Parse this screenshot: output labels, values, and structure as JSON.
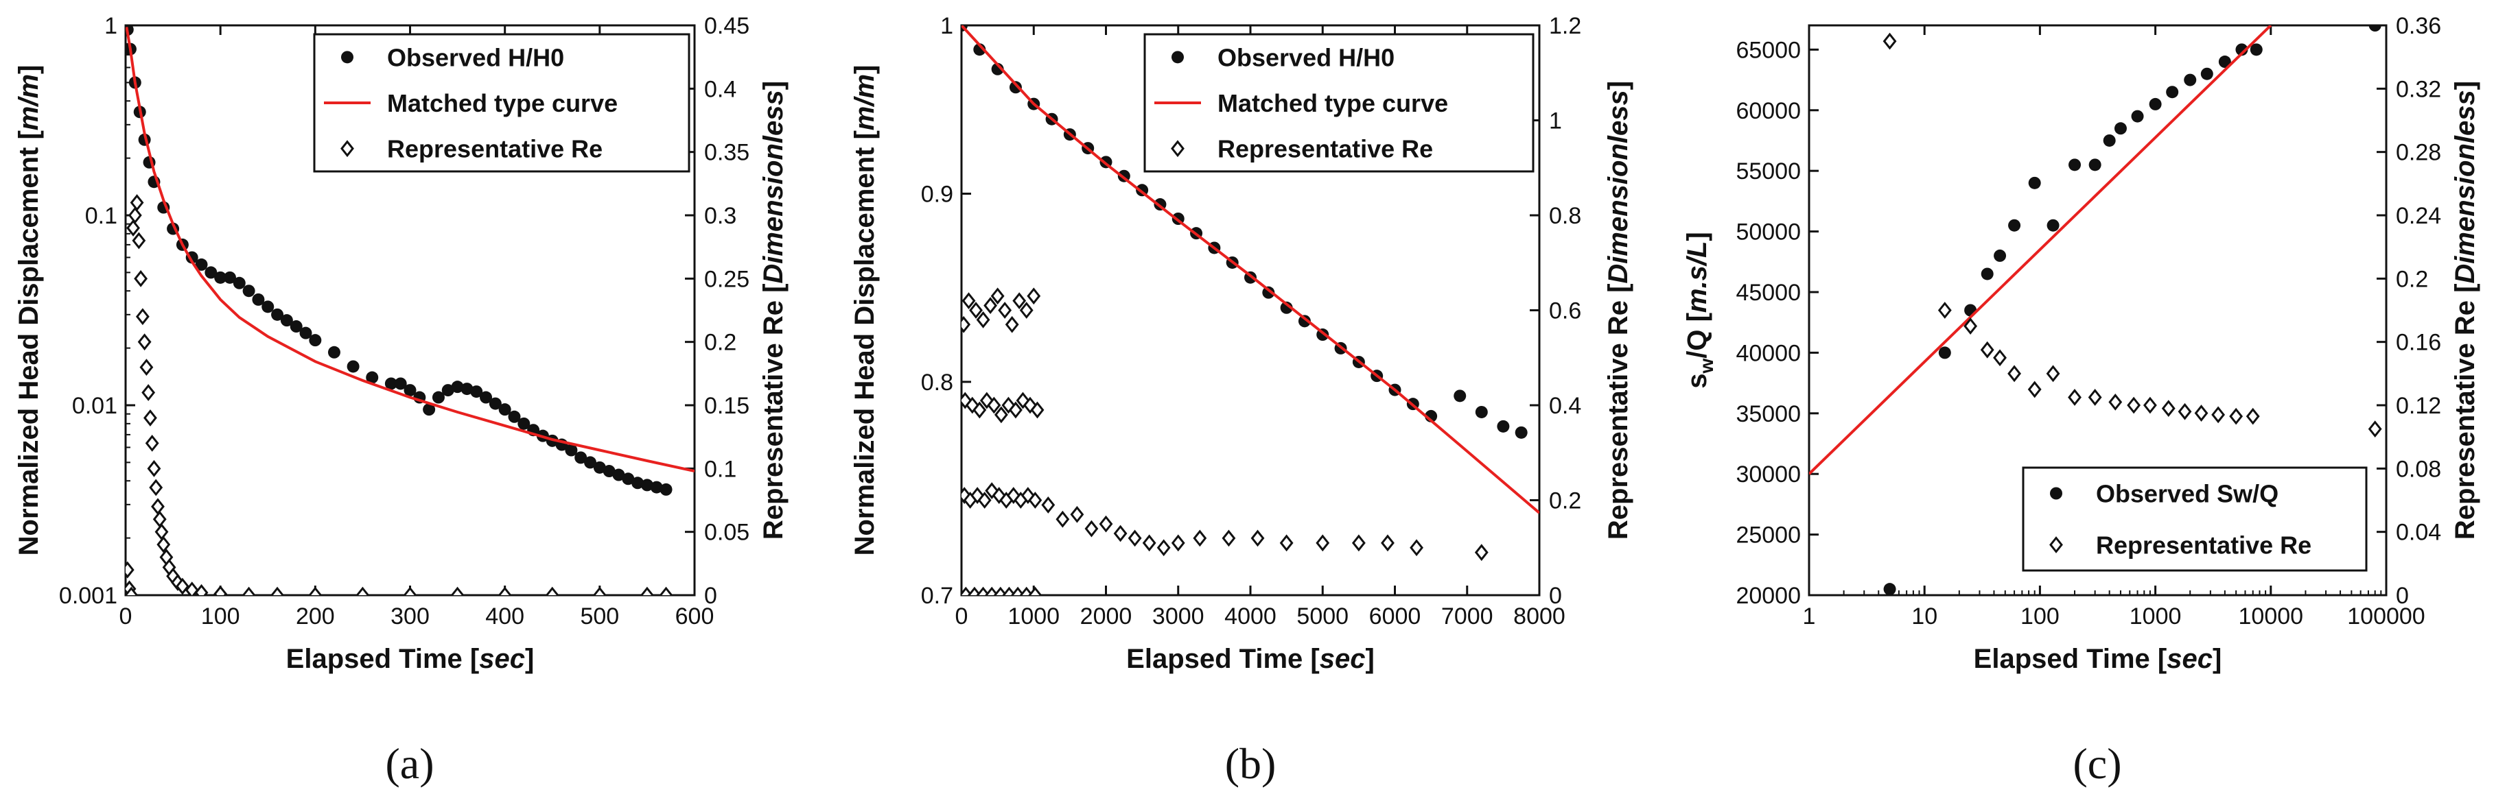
{
  "chart_data": [
    {
      "id": "a",
      "type": "scatter",
      "caption": "(a)",
      "xlabel": "Elapsed Time [",
      "xlabel_unit": "sec",
      "xlabel_end": "]",
      "ylabel": "Normalized Head Displacement [",
      "ylabel_unit": "m/m",
      "ylabel_end": "]",
      "y2label": "Representative Re [",
      "y2label_unit": "Dimensionless",
      "y2label_end": "]",
      "xlim": [
        0,
        600
      ],
      "xticks": [
        "0",
        "100",
        "200",
        "300",
        "400",
        "500",
        "600"
      ],
      "xtick_vals": [
        0,
        100,
        200,
        300,
        400,
        500,
        600
      ],
      "yscale": "log",
      "ylim": [
        0.001,
        1
      ],
      "yticks": [
        "1",
        "0.1",
        "0.01",
        "0.001"
      ],
      "ytick_vals": [
        1,
        0.1,
        0.01,
        0.001
      ],
      "y2lim": [
        0,
        0.45
      ],
      "y2ticks": [
        "0.45",
        "0.4",
        "0.35",
        "0.3",
        "0.25",
        "0.2",
        "0.15",
        "0.1",
        "0.05",
        "0"
      ],
      "y2tick_vals": [
        0.45,
        0.4,
        0.35,
        0.3,
        0.25,
        0.2,
        0.15,
        0.1,
        0.05,
        0
      ],
      "legend": [
        "Observed H/H0",
        "Matched type curve",
        "Representative Re"
      ],
      "legend_position": "top-right",
      "series": [
        {
          "name": "Observed H/H0",
          "axis": "left",
          "marker": "dot",
          "x": [
            2,
            5,
            10,
            15,
            20,
            25,
            30,
            40,
            50,
            60,
            70,
            80,
            90,
            100,
            110,
            120,
            130,
            140,
            150,
            160,
            170,
            180,
            190,
            200,
            220,
            240,
            260,
            280,
            290,
            300,
            310,
            320,
            330,
            340,
            350,
            360,
            370,
            380,
            390,
            400,
            410,
            420,
            430,
            440,
            450,
            460,
            470,
            480,
            490,
            500,
            510,
            520,
            530,
            540,
            550,
            560,
            570
          ],
          "y": [
            0.95,
            0.75,
            0.5,
            0.35,
            0.25,
            0.19,
            0.15,
            0.11,
            0.085,
            0.07,
            0.06,
            0.055,
            0.05,
            0.047,
            0.047,
            0.044,
            0.04,
            0.036,
            0.033,
            0.03,
            0.028,
            0.026,
            0.024,
            0.022,
            0.019,
            0.016,
            0.014,
            0.013,
            0.013,
            0.012,
            0.011,
            0.0095,
            0.011,
            0.012,
            0.0125,
            0.0122,
            0.0118,
            0.011,
            0.0102,
            0.0095,
            0.0087,
            0.008,
            0.0074,
            0.0069,
            0.0065,
            0.0062,
            0.0058,
            0.0053,
            0.005,
            0.0047,
            0.0045,
            0.0043,
            0.0041,
            0.0039,
            0.0038,
            0.0037,
            0.0036
          ]
        },
        {
          "name": "Matched type curve",
          "axis": "left",
          "marker": "line",
          "x": [
            1,
            5,
            10,
            20,
            30,
            40,
            50,
            60,
            70,
            80,
            100,
            120,
            150,
            200,
            250,
            300,
            350,
            400,
            450,
            500,
            550,
            600
          ],
          "y": [
            0.98,
            0.75,
            0.5,
            0.27,
            0.17,
            0.12,
            0.09,
            0.07,
            0.057,
            0.048,
            0.036,
            0.029,
            0.023,
            0.017,
            0.0135,
            0.011,
            0.0092,
            0.0078,
            0.0066,
            0.0058,
            0.0051,
            0.0045
          ]
        },
        {
          "name": "Representative Re",
          "axis": "right",
          "marker": "diamond",
          "x": [
            2,
            4,
            6,
            8,
            10,
            12,
            14,
            16,
            18,
            20,
            22,
            24,
            26,
            28,
            30,
            32,
            34,
            36,
            38,
            40,
            43,
            46,
            50,
            55,
            60,
            70,
            80,
            100,
            130,
            160,
            200,
            250,
            300,
            350,
            400,
            450,
            500,
            550,
            570
          ],
          "y": [
            0.02,
            0.005,
            0.0,
            0.29,
            0.3,
            0.31,
            0.28,
            0.25,
            0.22,
            0.2,
            0.18,
            0.16,
            0.14,
            0.12,
            0.1,
            0.085,
            0.07,
            0.06,
            0.05,
            0.04,
            0.03,
            0.022,
            0.015,
            0.01,
            0.007,
            0.004,
            0.002,
            0.001,
            0.0,
            0.0,
            0.0,
            0.0,
            0.0,
            0.0,
            0.0,
            0.0,
            0.0,
            0.0,
            0.0
          ]
        }
      ]
    },
    {
      "id": "b",
      "type": "scatter",
      "caption": "(b)",
      "xlabel": "Elapsed Time [",
      "xlabel_unit": "sec",
      "xlabel_end": "]",
      "ylabel": "Normalized Head Displacement [",
      "ylabel_unit": "m/m",
      "ylabel_end": "]",
      "y2label": "Representative Re [",
      "y2label_unit": "Dimensionless",
      "y2label_end": "]",
      "xlim": [
        0,
        8000
      ],
      "xticks": [
        "0",
        "1000",
        "2000",
        "3000",
        "4000",
        "5000",
        "6000",
        "7000",
        "8000"
      ],
      "xtick_vals": [
        0,
        1000,
        2000,
        3000,
        4000,
        5000,
        6000,
        7000,
        8000
      ],
      "yscale": "log",
      "ylim": [
        0.7,
        1
      ],
      "yticks": [
        "1",
        "0.9",
        "0.8",
        "0.7"
      ],
      "ytick_vals": [
        1,
        0.9,
        0.8,
        0.7
      ],
      "y2lim": [
        0,
        1.2
      ],
      "y2ticks": [
        "1.2",
        "1",
        "0.8",
        "0.6",
        "0.4",
        "0.2",
        "0"
      ],
      "y2tick_vals": [
        1.2,
        1,
        0.8,
        0.6,
        0.4,
        0.2,
        0
      ],
      "legend": [
        "Observed H/H0",
        "Matched type curve",
        "Representative Re"
      ],
      "legend_position": "top-right",
      "series": [
        {
          "name": "Observed H/H0",
          "axis": "left",
          "marker": "dot",
          "x": [
            0,
            250,
            500,
            750,
            1000,
            1250,
            1500,
            1750,
            2000,
            2250,
            2500,
            2750,
            3000,
            3250,
            3500,
            3750,
            4000,
            4250,
            4500,
            4750,
            5000,
            5250,
            5500,
            5750,
            6000,
            6250,
            6500,
            6900,
            7200,
            7500,
            7750
          ],
          "y": [
            1.0,
            0.985,
            0.973,
            0.962,
            0.952,
            0.943,
            0.934,
            0.926,
            0.918,
            0.91,
            0.902,
            0.894,
            0.886,
            0.878,
            0.87,
            0.862,
            0.854,
            0.846,
            0.838,
            0.831,
            0.824,
            0.817,
            0.81,
            0.803,
            0.796,
            0.789,
            0.783,
            0.793,
            0.785,
            0.778,
            0.775
          ]
        },
        {
          "name": "Matched type curve",
          "axis": "left",
          "marker": "line",
          "x": [
            0,
            1000,
            2000,
            3000,
            4000,
            5000,
            6000,
            7000,
            8000
          ],
          "y": [
            1.0,
            0.952,
            0.917,
            0.885,
            0.855,
            0.825,
            0.796,
            0.766,
            0.737
          ]
        },
        {
          "name": "Representative Re",
          "axis": "right",
          "marker": "diamond",
          "x": [
            30,
            100,
            200,
            300,
            400,
            500,
            600,
            700,
            800,
            900,
            1000,
            50,
            150,
            250,
            350,
            450,
            550,
            650,
            750,
            850,
            950,
            1050,
            40,
            120,
            220,
            320,
            420,
            520,
            620,
            720,
            820,
            920,
            1020,
            1200,
            1400,
            1600,
            1800,
            2000,
            2200,
            2400,
            2600,
            2800,
            3000,
            3300,
            3700,
            4100,
            4500,
            5000,
            5500,
            5900,
            6300,
            7200,
            60,
            180,
            300,
            420,
            540,
            660,
            780,
            900,
            1020
          ],
          "y": [
            0.57,
            0.62,
            0.6,
            0.58,
            0.61,
            0.63,
            0.6,
            0.57,
            0.62,
            0.6,
            0.63,
            0.41,
            0.4,
            0.39,
            0.41,
            0.4,
            0.38,
            0.4,
            0.39,
            0.41,
            0.4,
            0.39,
            0.21,
            0.2,
            0.21,
            0.2,
            0.22,
            0.21,
            0.2,
            0.21,
            0.2,
            0.21,
            0.2,
            0.19,
            0.16,
            0.17,
            0.14,
            0.15,
            0.13,
            0.12,
            0.11,
            0.1,
            0.11,
            0.12,
            0.12,
            0.12,
            0.11,
            0.11,
            0.11,
            0.11,
            0.1,
            0.09,
            0.0,
            0.0,
            0.0,
            0.0,
            0.0,
            0.0,
            0.0,
            0.0,
            0.0
          ]
        }
      ]
    },
    {
      "id": "c",
      "type": "scatter",
      "caption": "(c)",
      "xlabel": "Elapsed Time [",
      "xlabel_unit": "sec",
      "xlabel_end": "]",
      "ylabel": "s",
      "ylabel_sub": "w",
      "ylabel_rest": "/Q [",
      "ylabel_unit": "m.s/L",
      "ylabel_end": "]",
      "y2label": "Representative Re [",
      "y2label_unit": "Dimensionless",
      "y2label_end": "]",
      "xscale": "log",
      "xlim": [
        1,
        100000
      ],
      "xticks": [
        "1",
        "10",
        "100",
        "1000",
        "10000",
        "100000"
      ],
      "xtick_vals": [
        1,
        10,
        100,
        1000,
        10000,
        100000
      ],
      "ylim": [
        20000,
        67000
      ],
      "yticks": [
        "65000",
        "60000",
        "55000",
        "50000",
        "45000",
        "40000",
        "35000",
        "30000",
        "25000",
        "20000"
      ],
      "ytick_vals": [
        65000,
        60000,
        55000,
        50000,
        45000,
        40000,
        35000,
        30000,
        25000,
        20000
      ],
      "y2lim": [
        0,
        0.36
      ],
      "y2ticks": [
        "0.36",
        "0.32",
        "0.28",
        "0.24",
        "0.2",
        "0.16",
        "0.12",
        "0.08",
        "0.04",
        "0"
      ],
      "y2tick_vals": [
        0.36,
        0.32,
        0.28,
        0.24,
        0.2,
        0.16,
        0.12,
        0.08,
        0.04,
        0
      ],
      "legend": [
        "Observed Sw/Q",
        "Representative Re"
      ],
      "legend_position": "bottom-right",
      "series": [
        {
          "name": "Observed Sw/Q",
          "axis": "left",
          "marker": "dot",
          "x": [
            5,
            15,
            25,
            35,
            45,
            60,
            90,
            130,
            200,
            300,
            400,
            500,
            700,
            1000,
            1400,
            2000,
            2800,
            4000,
            5600,
            7500,
            80000
          ],
          "y": [
            20500,
            40000,
            43500,
            46500,
            48000,
            50500,
            54000,
            50500,
            55500,
            55500,
            57500,
            58500,
            59500,
            60500,
            61500,
            62500,
            63000,
            64000,
            65000,
            65000,
            67000
          ]
        },
        {
          "name": "Matched line",
          "axis": "left",
          "marker": "line",
          "x": [
            1,
            10000
          ],
          "y": [
            30000,
            67000
          ]
        },
        {
          "name": "Representative Re",
          "axis": "right",
          "marker": "diamond",
          "x": [
            5,
            15,
            25,
            35,
            45,
            60,
            90,
            130,
            200,
            300,
            450,
            650,
            900,
            1300,
            1800,
            2500,
            3500,
            5000,
            7000,
            80000
          ],
          "y": [
            0.35,
            0.18,
            0.17,
            0.155,
            0.15,
            0.14,
            0.13,
            0.14,
            0.125,
            0.125,
            0.122,
            0.12,
            0.12,
            0.118,
            0.116,
            0.115,
            0.114,
            0.113,
            0.113,
            0.105
          ]
        }
      ]
    }
  ]
}
